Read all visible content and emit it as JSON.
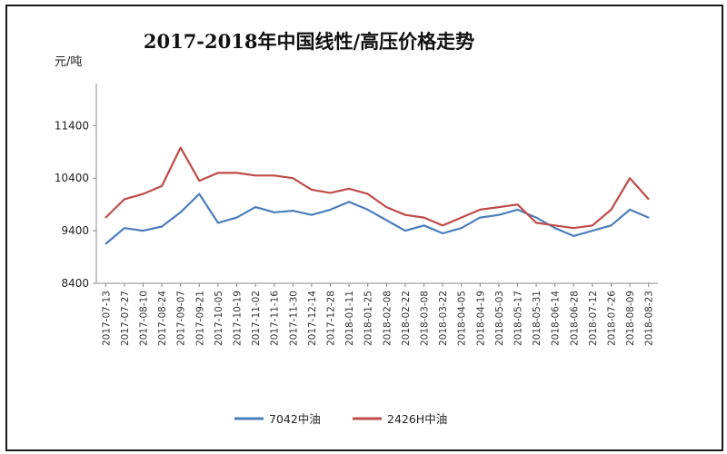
{
  "chart_data": {
    "type": "line",
    "title": "2017-2018年中国线性/高压价格走势",
    "ylabel": "元/吨",
    "xlabel": "",
    "ylim": [
      8400,
      12200
    ],
    "yticks": [
      8400,
      9400,
      10400,
      11400
    ],
    "grid": false,
    "legend": "bottom",
    "x": [
      "2017-07-13",
      "2017-07-27",
      "2017-08-10",
      "2017-08-24",
      "2017-09-07",
      "2017-09-21",
      "2017-10-05",
      "2017-10-19",
      "2017-11-02",
      "2017-11-16",
      "2017-11-30",
      "2017-12-14",
      "2017-12-28",
      "2018-01-11",
      "2018-01-25",
      "2018-02-08",
      "2018-02-22",
      "2018-03-08",
      "2018-03-22",
      "2018-04-05",
      "2018-04-19",
      "2018-05-03",
      "2018-05-17",
      "2018-05-31",
      "2018-06-14",
      "2018-06-28",
      "2018-07-12",
      "2018-07-26",
      "2018-08-09",
      "2018-08-23"
    ],
    "series": [
      {
        "name": "7042中油",
        "color": "#4a7ebb",
        "values": [
          9150,
          9450,
          9400,
          9480,
          9750,
          10100,
          9550,
          9650,
          9850,
          9750,
          9780,
          9700,
          9800,
          9950,
          9800,
          9600,
          9400,
          9500,
          9350,
          9450,
          9650,
          9700,
          9800,
          9650,
          9450,
          9300,
          9400,
          9500,
          9800,
          9650
        ]
      },
      {
        "name": "2426H中油",
        "color": "#be4b48",
        "values": [
          9650,
          10000,
          10100,
          10250,
          10980,
          10350,
          10500,
          10500,
          10450,
          10450,
          10400,
          10180,
          10120,
          10200,
          10100,
          9850,
          9700,
          9650,
          9500,
          9650,
          9800,
          9850,
          9900,
          9550,
          9500,
          9450,
          9500,
          9800,
          10400,
          10000
        ]
      }
    ]
  }
}
